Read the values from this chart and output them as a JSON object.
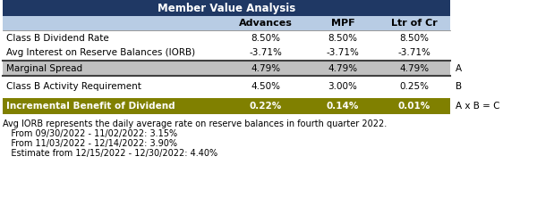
{
  "title": "Member Value Analysis",
  "title_bg": "#1f3864",
  "title_fg": "#ffffff",
  "header_row": [
    "",
    "Advances",
    "MPF",
    "Ltr of Cr"
  ],
  "header_bg": "#b8cce4",
  "rows": [
    {
      "label": "Class B Dividend Rate",
      "values": [
        "8.50%",
        "8.50%",
        "8.50%"
      ],
      "bg": "#ffffff",
      "bold": false,
      "side_label": ""
    },
    {
      "label": "Avg Interest on Reserve Balances (IORB)",
      "values": [
        "-3.71%",
        "-3.71%",
        "-3.71%"
      ],
      "bg": "#ffffff",
      "bold": false,
      "side_label": ""
    },
    {
      "label": "Marginal Spread",
      "values": [
        "4.79%",
        "4.79%",
        "4.79%"
      ],
      "bg": "#c0c0c0",
      "bold": false,
      "side_label": "A"
    },
    {
      "label": "Class B Activity Requirement",
      "values": [
        "4.50%",
        "3.00%",
        "0.25%"
      ],
      "bg": "#ffffff",
      "bold": false,
      "side_label": "B"
    },
    {
      "label": "Incremental Benefit of Dividend",
      "values": [
        "0.22%",
        "0.14%",
        "0.01%"
      ],
      "bg": "#808000",
      "bold": true,
      "side_label": "A x B = C"
    }
  ],
  "footnote_lines": [
    "Avg IORB represents the daily average rate on reserve balances in fourth quarter 2022.",
    "   From 09/30/2022 - 11/02/2022: 3.15%",
    "   From 11/03/2022 - 12/14/2022: 3.90%",
    "   Estimate from 12/15/2022 - 12/30/2022: 4.40%"
  ],
  "figsize": [
    6.0,
    2.4
  ],
  "dpi": 100
}
